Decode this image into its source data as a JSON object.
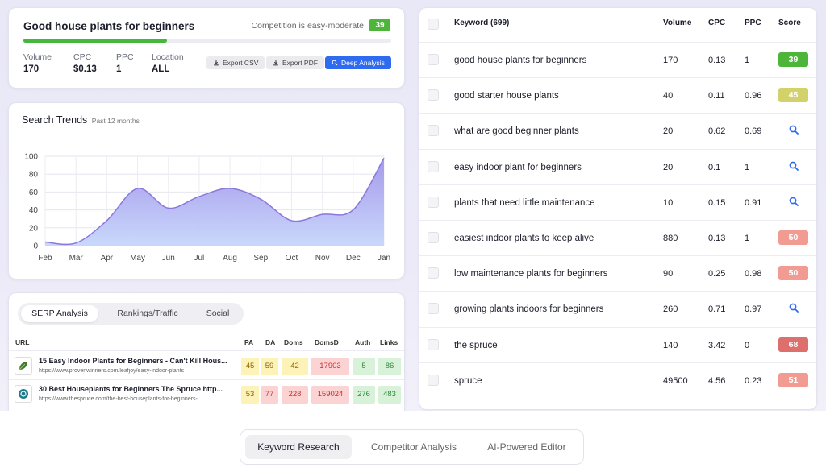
{
  "summary": {
    "keyword": "Good house plants for beginners",
    "competition_text": "Competition is easy-moderate",
    "competition_score": "39",
    "competition_color": "#4cb53a",
    "progress_fraction": 0.39,
    "metrics": [
      {
        "label": "Volume",
        "value": "170"
      },
      {
        "label": "CPC",
        "value": "$0.13"
      },
      {
        "label": "PPC",
        "value": "1"
      },
      {
        "label": "Location",
        "value": "ALL"
      }
    ],
    "buttons": {
      "export_csv": "Export CSV",
      "export_pdf": "Export PDF",
      "deep_analysis": "Deep Analysis"
    }
  },
  "trends": {
    "title": "Search Trends",
    "subtitle": "Past 12 months",
    "chart_data": {
      "type": "area",
      "categories": [
        "Feb",
        "Mar",
        "Apr",
        "May",
        "Jun",
        "Jul",
        "Aug",
        "Sep",
        "Oct",
        "Nov",
        "Dec",
        "Jan"
      ],
      "values": [
        4,
        3,
        28,
        64,
        42,
        55,
        64,
        52,
        28,
        35,
        40,
        98
      ],
      "yticks": [
        0,
        20,
        40,
        60,
        80,
        100
      ],
      "ylim": [
        0,
        100
      ],
      "grid": true,
      "colors": {
        "fill_top": "#a295ea",
        "fill_bottom": "#c6d6fb",
        "line": "#8a78dc"
      }
    }
  },
  "serp": {
    "tabs": [
      "SERP Analysis",
      "Rankings/Traffic",
      "Social"
    ],
    "active_tab": 0,
    "columns": [
      "URL",
      "PA",
      "DA",
      "Doms",
      "DomsD",
      "Auth",
      "Links"
    ],
    "rows": [
      {
        "title": "15 Easy Indoor Plants for Beginners - Can't Kill Hous...",
        "url": "https://www.provenwinners.com/leafjoy/easy-indoor-plants",
        "icon": "leaf-icon",
        "metrics": [
          "45",
          "59",
          "42",
          "17903",
          "5",
          "86"
        ]
      },
      {
        "title": "30 Best Houseplants for Beginners The Spruce http...",
        "url": "https://www.thespruce.com/the-best-houseplants-for-beginners-...",
        "icon": "spruce-logo-icon",
        "metrics": [
          "53",
          "77",
          "228",
          "159024",
          "276",
          "483"
        ]
      }
    ]
  },
  "keywords": {
    "header": {
      "keyword": "Keyword (699)",
      "volume": "Volume",
      "cpc": "CPC",
      "ppc": "PPC",
      "score": "Score"
    },
    "rows": [
      {
        "keyword": "good house plants for beginners",
        "volume": "170",
        "cpc": "0.13",
        "ppc": "1",
        "score": "39",
        "score_color": "#4cb53a"
      },
      {
        "keyword": "good starter house plants",
        "volume": "40",
        "cpc": "0.11",
        "ppc": "0.96",
        "score": "45",
        "score_color": "#d3d16a"
      },
      {
        "keyword": "what are good beginner plants",
        "volume": "20",
        "cpc": "0.62",
        "ppc": "0.69",
        "score": null
      },
      {
        "keyword": "easy indoor plant for beginners",
        "volume": "20",
        "cpc": "0.1",
        "ppc": "1",
        "score": null
      },
      {
        "keyword": "plants that need little maintenance",
        "volume": "10",
        "cpc": "0.15",
        "ppc": "0.91",
        "score": null
      },
      {
        "keyword": "easiest indoor plants to keep alive",
        "volume": "880",
        "cpc": "0.13",
        "ppc": "1",
        "score": "50",
        "score_color": "#f29b93"
      },
      {
        "keyword": "low maintenance plants for beginners",
        "volume": "90",
        "cpc": "0.25",
        "ppc": "0.98",
        "score": "50",
        "score_color": "#f29b93"
      },
      {
        "keyword": "growing plants indoors for beginners",
        "volume": "260",
        "cpc": "0.71",
        "ppc": "0.97",
        "score": null
      },
      {
        "keyword": "the spruce",
        "volume": "140",
        "cpc": "3.42",
        "ppc": "0",
        "score": "68",
        "score_color": "#dd6f6c"
      },
      {
        "keyword": "spruce",
        "volume": "49500",
        "cpc": "4.56",
        "ppc": "0.23",
        "score": "51",
        "score_color": "#f29b93"
      }
    ]
  },
  "bottom_nav": {
    "items": [
      "Keyword Research",
      "Competitor Analysis",
      "AI-Powered Editor"
    ],
    "active": 0
  }
}
